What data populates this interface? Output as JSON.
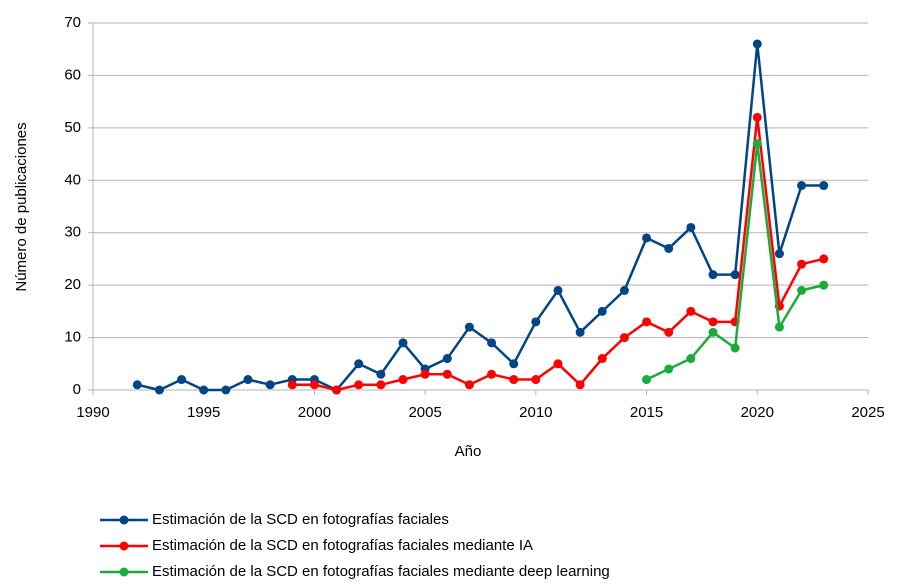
{
  "chart_data": {
    "type": "line",
    "x_label": "Año",
    "y_label": "Número de publicaciones",
    "x": [
      1992,
      1993,
      1994,
      1995,
      1996,
      1997,
      1998,
      1999,
      2000,
      2001,
      2002,
      2003,
      2004,
      2005,
      2006,
      2007,
      2008,
      2009,
      2010,
      2011,
      2012,
      2013,
      2014,
      2015,
      2016,
      2017,
      2018,
      2019,
      2020,
      2021,
      2022,
      2023
    ],
    "series": [
      {
        "name": "Estimación de la SCD en fotografías faciales",
        "color": "#004586",
        "values": [
          1,
          0,
          2,
          0,
          0,
          2,
          1,
          2,
          2,
          0,
          5,
          3,
          9,
          4,
          6,
          12,
          9,
          5,
          13,
          19,
          11,
          15,
          19,
          29,
          27,
          31,
          22,
          22,
          66,
          26,
          39,
          39
        ]
      },
      {
        "name": "Estimación de la SCD en fotografías faciales mediante IA",
        "color": "#ff0000",
        "values": [
          null,
          null,
          null,
          null,
          null,
          null,
          null,
          1,
          1,
          0,
          1,
          1,
          2,
          3,
          3,
          1,
          3,
          2,
          2,
          5,
          1,
          6,
          10,
          13,
          11,
          15,
          13,
          13,
          52,
          16,
          24,
          25
        ]
      },
      {
        "name": "Estimación de la SCD en fotografías faciales mediante deep learning",
        "color": "#1aab3a",
        "values": [
          null,
          null,
          null,
          null,
          null,
          null,
          null,
          null,
          null,
          null,
          null,
          null,
          null,
          null,
          null,
          null,
          null,
          null,
          null,
          null,
          null,
          null,
          null,
          2,
          4,
          6,
          11,
          8,
          47,
          12,
          19,
          20
        ]
      }
    ],
    "xlim": [
      1990,
      2025
    ],
    "xticks": [
      1990,
      1995,
      2000,
      2005,
      2010,
      2015,
      2020,
      2025
    ],
    "ylim": [
      0,
      70
    ],
    "yticks": [
      0,
      10,
      20,
      30,
      40,
      50,
      60,
      70
    ],
    "grid": true,
    "legend": "bottom"
  }
}
